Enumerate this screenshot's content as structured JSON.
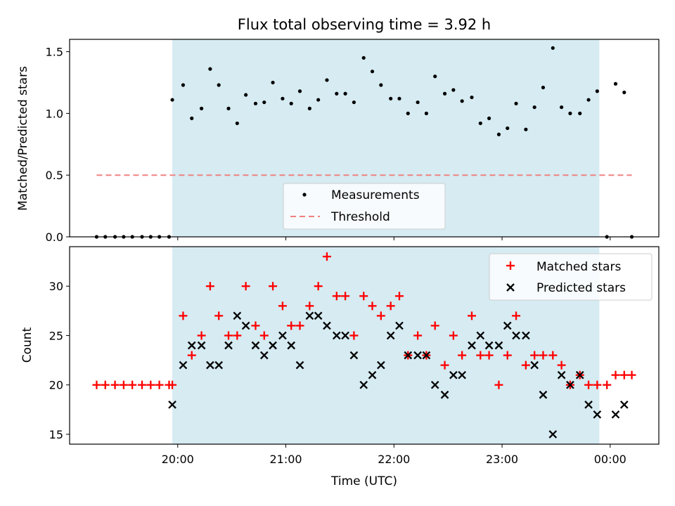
{
  "title": "Flux total observing time = 3.92 h",
  "colors": {
    "window": "#add8e6",
    "measurement": "#000000",
    "threshold": "#f08080",
    "matched": "#ff0000",
    "predicted": "#000000"
  },
  "chart_data": [
    {
      "type": "scatter",
      "ylabel": "Matched/Predicted stars",
      "ylim": [
        0,
        1.6
      ],
      "yticks": [
        0.0,
        0.5,
        1.0,
        1.5
      ],
      "ytick_labels": [
        "0.0",
        "0.5",
        "1.0",
        "1.5"
      ],
      "xlim_hours": [
        19.0,
        24.45
      ],
      "observing_window_hours": [
        19.95,
        23.9
      ],
      "legend_position": "lower-center",
      "legend": [
        "Measurements",
        "Threshold"
      ],
      "threshold": {
        "name": "Threshold",
        "y": 0.5,
        "x_range_hours": [
          19.25,
          24.2
        ]
      },
      "series": [
        {
          "name": "Measurements",
          "x_hours": [
            19.25,
            19.33,
            19.42,
            19.5,
            19.58,
            19.67,
            19.75,
            19.83,
            19.92,
            19.95,
            20.05,
            20.13,
            20.22,
            20.3,
            20.38,
            20.47,
            20.55,
            20.63,
            20.72,
            20.8,
            20.88,
            20.97,
            21.05,
            21.13,
            21.22,
            21.3,
            21.38,
            21.47,
            21.55,
            21.63,
            21.72,
            21.8,
            21.88,
            21.97,
            22.05,
            22.13,
            22.22,
            22.3,
            22.38,
            22.47,
            22.55,
            22.63,
            22.72,
            22.8,
            22.88,
            22.97,
            23.05,
            23.13,
            23.22,
            23.3,
            23.38,
            23.47,
            23.55,
            23.63,
            23.72,
            23.8,
            23.88,
            23.97,
            24.05,
            24.13,
            24.2
          ],
          "y": [
            0,
            0,
            0,
            0,
            0,
            0,
            0,
            0,
            0,
            1.11,
            1.23,
            0.96,
            1.04,
            1.36,
            1.23,
            1.04,
            0.92,
            1.15,
            1.08,
            1.09,
            1.25,
            1.12,
            1.08,
            1.18,
            1.04,
            1.11,
            1.27,
            1.16,
            1.16,
            1.09,
            1.45,
            1.34,
            1.23,
            1.12,
            1.12,
            1.0,
            1.09,
            1.0,
            1.3,
            1.16,
            1.19,
            1.1,
            1.13,
            0.92,
            0.96,
            0.83,
            0.88,
            1.08,
            0.87,
            1.05,
            1.21,
            1.53,
            1.05,
            1.0,
            1.0,
            1.11,
            1.18,
            0.0,
            1.24,
            1.17,
            0.0
          ]
        }
      ]
    },
    {
      "type": "scatter",
      "xlabel": "Time (UTC)",
      "ylabel": "Count",
      "ylim": [
        14,
        34
      ],
      "yticks": [
        15,
        20,
        25,
        30
      ],
      "ytick_labels": [
        "15",
        "20",
        "25",
        "30"
      ],
      "xlim_hours": [
        19.0,
        24.45
      ],
      "xticks_hours": [
        20,
        21,
        22,
        23,
        24
      ],
      "xtick_labels": [
        "20:00",
        "21:00",
        "22:00",
        "23:00",
        "00:00"
      ],
      "observing_window_hours": [
        19.95,
        23.9
      ],
      "legend_position": "upper-right",
      "legend": [
        "Matched stars",
        "Predicted stars"
      ],
      "series": [
        {
          "name": "Matched stars",
          "x_hours": [
            19.25,
            19.33,
            19.42,
            19.5,
            19.58,
            19.67,
            19.75,
            19.83,
            19.92,
            19.95,
            20.05,
            20.13,
            20.22,
            20.3,
            20.38,
            20.47,
            20.55,
            20.63,
            20.72,
            20.8,
            20.88,
            20.97,
            21.05,
            21.13,
            21.22,
            21.3,
            21.38,
            21.47,
            21.55,
            21.63,
            21.72,
            21.8,
            21.88,
            21.97,
            22.05,
            22.13,
            22.22,
            22.3,
            22.38,
            22.47,
            22.55,
            22.63,
            22.72,
            22.8,
            22.88,
            22.97,
            23.05,
            23.13,
            23.22,
            23.3,
            23.38,
            23.47,
            23.55,
            23.63,
            23.72,
            23.8,
            23.88,
            23.97,
            24.05,
            24.13,
            24.2
          ],
          "y": [
            20,
            20,
            20,
            20,
            20,
            20,
            20,
            20,
            20,
            20,
            27,
            23,
            25,
            30,
            27,
            25,
            25,
            30,
            26,
            25,
            30,
            28,
            26,
            26,
            28,
            30,
            33,
            29,
            29,
            25,
            29,
            28,
            27,
            28,
            29,
            23,
            25,
            23,
            26,
            22,
            25,
            23,
            27,
            23,
            23,
            20,
            23,
            27,
            22,
            23,
            23,
            23,
            22,
            20,
            21,
            20,
            20,
            20,
            21,
            21,
            21
          ]
        },
        {
          "name": "Predicted stars",
          "x_hours": [
            19.95,
            20.05,
            20.13,
            20.22,
            20.3,
            20.38,
            20.47,
            20.55,
            20.63,
            20.72,
            20.8,
            20.88,
            20.97,
            21.05,
            21.13,
            21.22,
            21.3,
            21.38,
            21.47,
            21.55,
            21.63,
            21.72,
            21.8,
            21.88,
            21.97,
            22.05,
            22.13,
            22.22,
            22.3,
            22.38,
            22.47,
            22.55,
            22.63,
            22.72,
            22.8,
            22.88,
            22.97,
            23.05,
            23.13,
            23.22,
            23.3,
            23.38,
            23.47,
            23.55,
            23.63,
            23.72,
            23.8,
            23.88,
            24.05,
            24.13
          ],
          "y": [
            18,
            22,
            24,
            24,
            22,
            22,
            24,
            27,
            26,
            24,
            23,
            24,
            25,
            24,
            22,
            27,
            27,
            26,
            25,
            25,
            23,
            20,
            21,
            22,
            25,
            26,
            23,
            23,
            23,
            20,
            19,
            21,
            21,
            24,
            25,
            24,
            24,
            26,
            25,
            25,
            22,
            19,
            15,
            21,
            20,
            21,
            18,
            17,
            17,
            18
          ]
        }
      ]
    }
  ]
}
